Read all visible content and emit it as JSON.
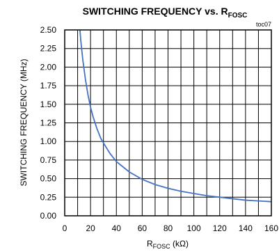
{
  "chart_data": {
    "type": "line",
    "title_main": "SWITCHING FREQUENCY vs. R",
    "title_sub": "FOSC",
    "note": "toc07",
    "xlabel_main": "R",
    "xlabel_sub": "FOSC",
    "xlabel_unit": " (kΩ)",
    "ylabel": "SWITCHING FREQUENCY (MHz)",
    "xlim": [
      0,
      160
    ],
    "ylim": [
      0,
      2.5
    ],
    "x_ticks": [
      "0",
      "20",
      "40",
      "60",
      "80",
      "100",
      "120",
      "140",
      "160"
    ],
    "y_ticks": [
      "0.00",
      "0.25",
      "0.50",
      "0.75",
      "1.00",
      "1.25",
      "1.50",
      "1.75",
      "2.00",
      "2.25",
      "2.50"
    ],
    "grid": true,
    "series": [
      {
        "color": "#4472c4",
        "x": [
          11.8,
          12.5,
          14,
          16,
          18,
          20,
          22,
          25,
          28,
          30,
          35,
          40,
          45,
          50,
          60,
          70,
          80,
          90,
          100,
          110,
          120,
          130,
          140,
          150,
          160
        ],
        "y": [
          2.5,
          2.35,
          2.1,
          1.84,
          1.63,
          1.46,
          1.33,
          1.17,
          1.04,
          0.98,
          0.84,
          0.73,
          0.66,
          0.59,
          0.49,
          0.42,
          0.37,
          0.33,
          0.3,
          0.27,
          0.25,
          0.23,
          0.21,
          0.2,
          0.19
        ]
      }
    ]
  }
}
